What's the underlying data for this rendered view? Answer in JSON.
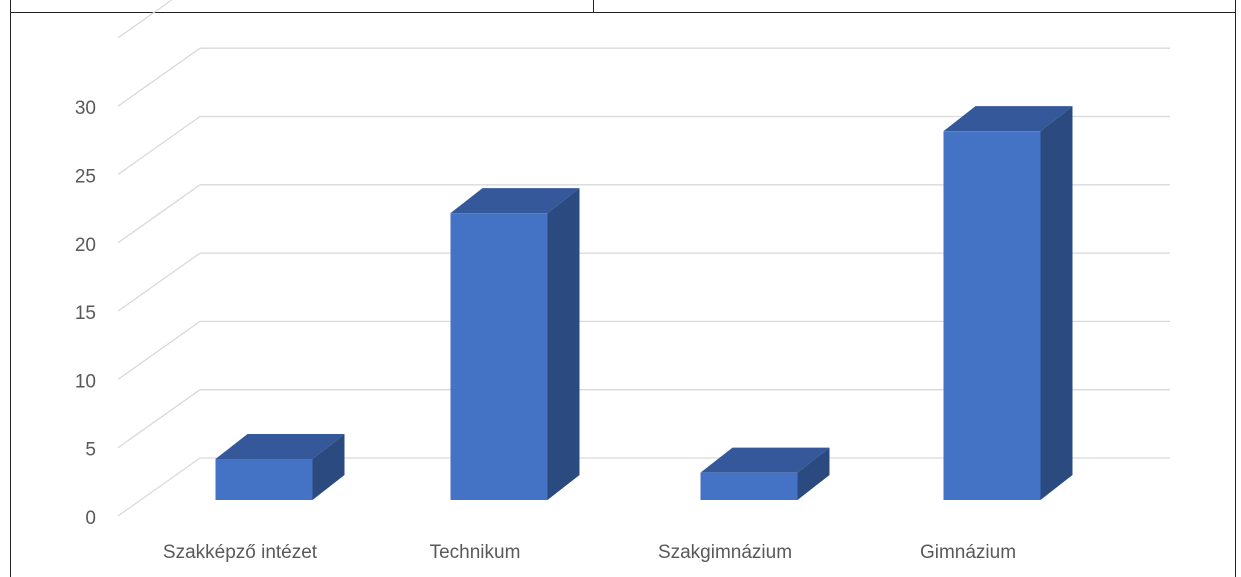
{
  "chart_data": {
    "type": "bar",
    "categories": [
      "Szakképző intézet",
      "Technikum",
      "Szakgimnázium",
      "Gimnázium"
    ],
    "values": [
      3,
      21,
      2,
      27
    ],
    "ylim": [
      0,
      30
    ],
    "yticks": [
      0,
      5,
      10,
      15,
      20,
      25,
      30
    ],
    "grid": true,
    "style": "3d-column",
    "colors": {
      "front": "#4472c4",
      "top": "#34589a",
      "side": "#2b4a80",
      "grid": "#d9d9d9",
      "text": "#595959"
    }
  }
}
